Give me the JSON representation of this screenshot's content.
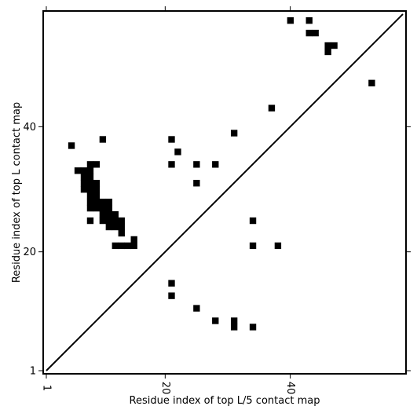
{
  "chart_data": {
    "type": "heatmap",
    "xlabel": "Residue index of top L/5 contact map",
    "ylabel": "Residue index of top L contact map",
    "xlim": [
      1,
      58
    ],
    "ylim": [
      1,
      58
    ],
    "xticks": [
      1,
      20,
      40
    ],
    "yticks": [
      1,
      20,
      40
    ],
    "grid": false,
    "diagonal": true,
    "cell_color": "#000000",
    "cells": [
      [
        40,
        57
      ],
      [
        43,
        57
      ],
      [
        43,
        55
      ],
      [
        44,
        55
      ],
      [
        46,
        53
      ],
      [
        47,
        53
      ],
      [
        46,
        52
      ],
      [
        53,
        47
      ],
      [
        37,
        43
      ],
      [
        31,
        39
      ],
      [
        21,
        38
      ],
      [
        22,
        36
      ],
      [
        21,
        34
      ],
      [
        25,
        34
      ],
      [
        28,
        34
      ],
      [
        25,
        31
      ],
      [
        34,
        25
      ],
      [
        34,
        21
      ],
      [
        38,
        21
      ],
      [
        21,
        15
      ],
      [
        21,
        13
      ],
      [
        25,
        11
      ],
      [
        28,
        9
      ],
      [
        31,
        9
      ],
      [
        31,
        8
      ],
      [
        34,
        8
      ],
      [
        5,
        37
      ],
      [
        10,
        38
      ],
      [
        8,
        34
      ],
      [
        9,
        34
      ],
      [
        6,
        33
      ],
      [
        7,
        33
      ],
      [
        8,
        33
      ],
      [
        7,
        32
      ],
      [
        8,
        32
      ],
      [
        7,
        31
      ],
      [
        8,
        31
      ],
      [
        9,
        31
      ],
      [
        7,
        30
      ],
      [
        8,
        30
      ],
      [
        9,
        30
      ],
      [
        8,
        29
      ],
      [
        9,
        29
      ],
      [
        8,
        28
      ],
      [
        9,
        28
      ],
      [
        10,
        28
      ],
      [
        11,
        28
      ],
      [
        8,
        27
      ],
      [
        9,
        27
      ],
      [
        10,
        27
      ],
      [
        11,
        27
      ],
      [
        10,
        26
      ],
      [
        11,
        26
      ],
      [
        12,
        26
      ],
      [
        8,
        25
      ],
      [
        10,
        25
      ],
      [
        11,
        25
      ],
      [
        12,
        25
      ],
      [
        13,
        25
      ],
      [
        11,
        24
      ],
      [
        12,
        24
      ],
      [
        13,
        24
      ],
      [
        13,
        23
      ],
      [
        15,
        22
      ],
      [
        12,
        21
      ],
      [
        13,
        21
      ],
      [
        14,
        21
      ],
      [
        15,
        21
      ]
    ]
  }
}
